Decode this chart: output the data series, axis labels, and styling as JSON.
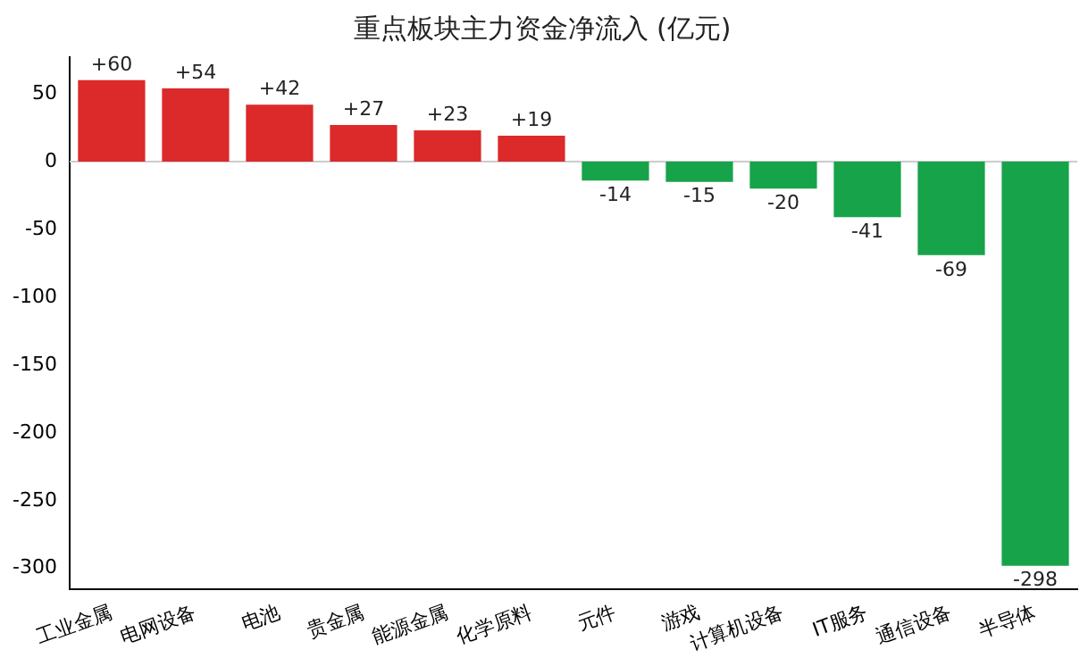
{
  "chart_data": {
    "type": "bar",
    "title": "重点板块主力资金净流入 (亿元)",
    "categories": [
      "工业金属",
      "电网设备",
      "电池",
      "贵金属",
      "能源金属",
      "化学原料",
      "元件",
      "游戏",
      "计算机设备",
      "IT服务",
      "通信设备",
      "半导体"
    ],
    "values": [
      60,
      54,
      42,
      27,
      23,
      19,
      -14,
      -15,
      -20,
      -41,
      -69,
      -298
    ],
    "colors": [
      "#dc2a2a",
      "#dc2a2a",
      "#dc2a2a",
      "#dc2a2a",
      "#dc2a2a",
      "#dc2a2a",
      "#17a34a",
      "#17a34a",
      "#17a34a",
      "#17a34a",
      "#17a34a",
      "#17a34a"
    ],
    "value_labels": [
      "+60",
      "+54",
      "+42",
      "+27",
      "+23",
      "+19",
      "-14",
      "-15",
      "-20",
      "-41",
      "-69",
      "-298"
    ],
    "ylim": [
      -315,
      77
    ],
    "yticks": [
      -300,
      -250,
      -200,
      -150,
      -100,
      -50,
      0,
      50
    ],
    "ref_lines": [
      {
        "axis": "y",
        "value": 0,
        "label": null,
        "color": "#cccccc"
      }
    ],
    "grid": false,
    "legend": false
  }
}
